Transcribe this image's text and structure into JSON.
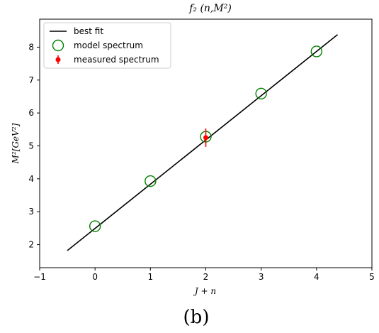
{
  "chart_data": {
    "type": "scatter",
    "title": "f₂ (n,M²)",
    "xlabel": "J + n",
    "ylabel": "M²[GeV²]",
    "xlim": [
      -1,
      5
    ],
    "ylim": [
      1.3,
      8.85
    ],
    "xticks": [
      -1,
      0,
      1,
      2,
      3,
      4,
      5
    ],
    "yticks": [
      2,
      3,
      4,
      5,
      6,
      7,
      8
    ],
    "grid": false,
    "legend_position": "top-left",
    "series": [
      {
        "name": "best fit",
        "kind": "line",
        "color": "#000000",
        "x": [
          -0.5,
          4.38
        ],
        "y": [
          1.82,
          8.38
        ]
      },
      {
        "name": "model spectrum",
        "kind": "open-circle",
        "color": "#008000",
        "x": [
          0,
          1,
          2,
          3,
          4
        ],
        "y": [
          2.56,
          3.93,
          5.28,
          6.59,
          7.87
        ]
      },
      {
        "name": "measured spectrum",
        "kind": "errorbar",
        "color": "#ff0000",
        "x": [
          2
        ],
        "y": [
          5.25
        ],
        "yerr": [
          0.28
        ]
      }
    ]
  },
  "caption": "(b)"
}
